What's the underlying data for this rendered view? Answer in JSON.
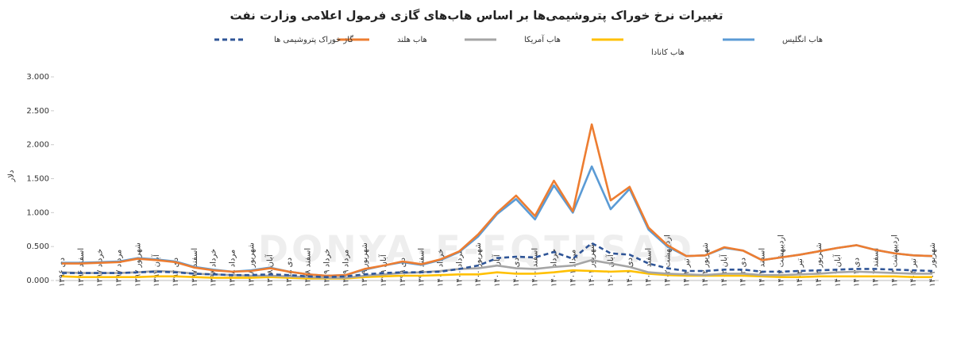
{
  "chart_data": {
    "type": "line",
    "title": "تغییرات نرخ خوراک پتروشیمی‌ها بر اساس هاب‌های گازی فرمول اعلامی وزارت نفت",
    "y_label": "دلار",
    "watermark": "DONYA-E-EQTESAD",
    "categories": [
      "دی ۱۳۹۶",
      "اسفند ۱۳۹۶",
      "خرداد ۱۳۹۷",
      "مرداد ۱۳۹۷",
      "شهریور ۱۳۹۷",
      "آبان ۱۳۹۷",
      "دی ۱۳۹۷",
      "اسفند ۱۳۹۷",
      "خرداد ۱۳۹۸",
      "مرداد ۱۳۹۸",
      "شهریور ۱۳۹۸",
      "آبان ۱۳۹۸",
      "دی ۱۳۹۸",
      "اسفند ۱۳۹۸",
      "خرداد ۱۳۹۹",
      "مرداد ۱۳۹۹",
      "شهریور ۱۳۹۹",
      "آبان ۱۳۹۹",
      "دی ۱۳۹۹",
      "اسفند ۱۳۹۹",
      "خرداد ۱۴۰۰",
      "مرداد ۱۴۰۰",
      "شهریور ۱۴۰۰",
      "آبان ۱۴۰۰",
      "دی ۱۴۰۰",
      "اسفند ۱۴۰۰",
      "خرداد ۱۴۰۱",
      "مرداد ۱۴۰۱",
      "شهریور ۱۴۰۱",
      "آبان ۱۴۰۱",
      "دی ۱۴۰۱",
      "اسفند ۱۴۰۱",
      "اردیبهشت ۱۴۰۲",
      "تیر ۱۴۰۲",
      "شهریور ۱۴۰۲",
      "آبان ۱۴۰۲",
      "دی ۱۴۰۲",
      "اسفند ۱۴۰۲",
      "اردیبهشت ۱۴۰۳",
      "تیر ۱۴۰۳",
      "شهریور ۱۴۰۳",
      "آبان ۱۴۰۳",
      "دی ۱۴۰۳",
      "اسفند ۱۴۰۳",
      "اردیبهشت ۱۴۰۴",
      "تیر ۱۴۰۴",
      "شهریور ۱۴۰۴"
    ],
    "series": [
      {
        "name": "هاب انگلیس",
        "color": "#5b9bd5",
        "dashed": false,
        "values": [
          0.26,
          0.26,
          0.27,
          0.28,
          0.33,
          0.31,
          0.28,
          0.2,
          0.16,
          0.13,
          0.15,
          0.19,
          0.13,
          0.09,
          0.07,
          0.08,
          0.16,
          0.22,
          0.27,
          0.23,
          0.3,
          0.42,
          0.65,
          0.98,
          1.2,
          0.9,
          1.4,
          1.0,
          1.68,
          1.05,
          1.35,
          0.75,
          0.5,
          0.36,
          0.37,
          0.48,
          0.44,
          0.3,
          0.34,
          0.38,
          0.43,
          0.48,
          0.52,
          0.45,
          0.4,
          0.37,
          0.36
        ]
      },
      {
        "name": "هاب کانادا",
        "color": "#ffc000",
        "dashed": false,
        "values": [
          0.06,
          0.05,
          0.05,
          0.05,
          0.05,
          0.06,
          0.06,
          0.05,
          0.04,
          0.04,
          0.04,
          0.05,
          0.04,
          0.03,
          0.03,
          0.03,
          0.05,
          0.06,
          0.07,
          0.07,
          0.08,
          0.09,
          0.09,
          0.12,
          0.1,
          0.1,
          0.12,
          0.15,
          0.14,
          0.13,
          0.14,
          0.1,
          0.08,
          0.07,
          0.07,
          0.07,
          0.07,
          0.06,
          0.05,
          0.05,
          0.06,
          0.06,
          0.06,
          0.06,
          0.06,
          0.05,
          0.05
        ]
      },
      {
        "name": "هاب آمریکا",
        "color": "#a5a5a5",
        "dashed": false,
        "values": [
          0.12,
          0.11,
          0.11,
          0.11,
          0.12,
          0.14,
          0.13,
          0.1,
          0.09,
          0.08,
          0.07,
          0.07,
          0.06,
          0.05,
          0.04,
          0.04,
          0.07,
          0.09,
          0.11,
          0.12,
          0.14,
          0.17,
          0.18,
          0.22,
          0.18,
          0.17,
          0.2,
          0.22,
          0.3,
          0.25,
          0.2,
          0.12,
          0.1,
          0.09,
          0.08,
          0.1,
          0.1,
          0.08,
          0.08,
          0.09,
          0.1,
          0.12,
          0.13,
          0.12,
          0.11,
          0.1,
          0.1
        ]
      },
      {
        "name": "هاب هلند",
        "color": "#ed7d31",
        "dashed": false,
        "values": [
          0.25,
          0.25,
          0.26,
          0.27,
          0.32,
          0.3,
          0.27,
          0.19,
          0.15,
          0.13,
          0.14,
          0.18,
          0.13,
          0.09,
          0.07,
          0.08,
          0.17,
          0.22,
          0.28,
          0.24,
          0.31,
          0.43,
          0.68,
          1.0,
          1.25,
          0.95,
          1.47,
          1.02,
          2.3,
          1.18,
          1.38,
          0.78,
          0.52,
          0.36,
          0.37,
          0.49,
          0.44,
          0.3,
          0.34,
          0.38,
          0.43,
          0.48,
          0.52,
          0.45,
          0.4,
          0.37,
          0.36
        ]
      },
      {
        "name": "گاز خوراک پتروشیمی ها",
        "color": "#2f5597",
        "dashed": true,
        "values": [
          0.11,
          0.11,
          0.11,
          0.11,
          0.12,
          0.13,
          0.12,
          0.1,
          0.09,
          0.08,
          0.08,
          0.09,
          0.08,
          0.06,
          0.05,
          0.06,
          0.09,
          0.11,
          0.12,
          0.12,
          0.13,
          0.17,
          0.22,
          0.33,
          0.35,
          0.34,
          0.42,
          0.32,
          0.55,
          0.4,
          0.38,
          0.25,
          0.18,
          0.14,
          0.14,
          0.16,
          0.16,
          0.13,
          0.13,
          0.14,
          0.15,
          0.16,
          0.17,
          0.17,
          0.16,
          0.15,
          0.14
        ]
      }
    ],
    "ylim": [
      0,
      3
    ],
    "yticks": [
      {
        "value": 0,
        "label": "0.000"
      },
      {
        "value": 0.5,
        "label": "0.500"
      },
      {
        "value": 1,
        "label": "1.000"
      },
      {
        "value": 1.5,
        "label": "1.500"
      },
      {
        "value": 2,
        "label": "2.000"
      },
      {
        "value": 2.5,
        "label": "2.500"
      },
      {
        "value": 3,
        "label": "3.000"
      }
    ],
    "grid": false,
    "legend": "top"
  }
}
